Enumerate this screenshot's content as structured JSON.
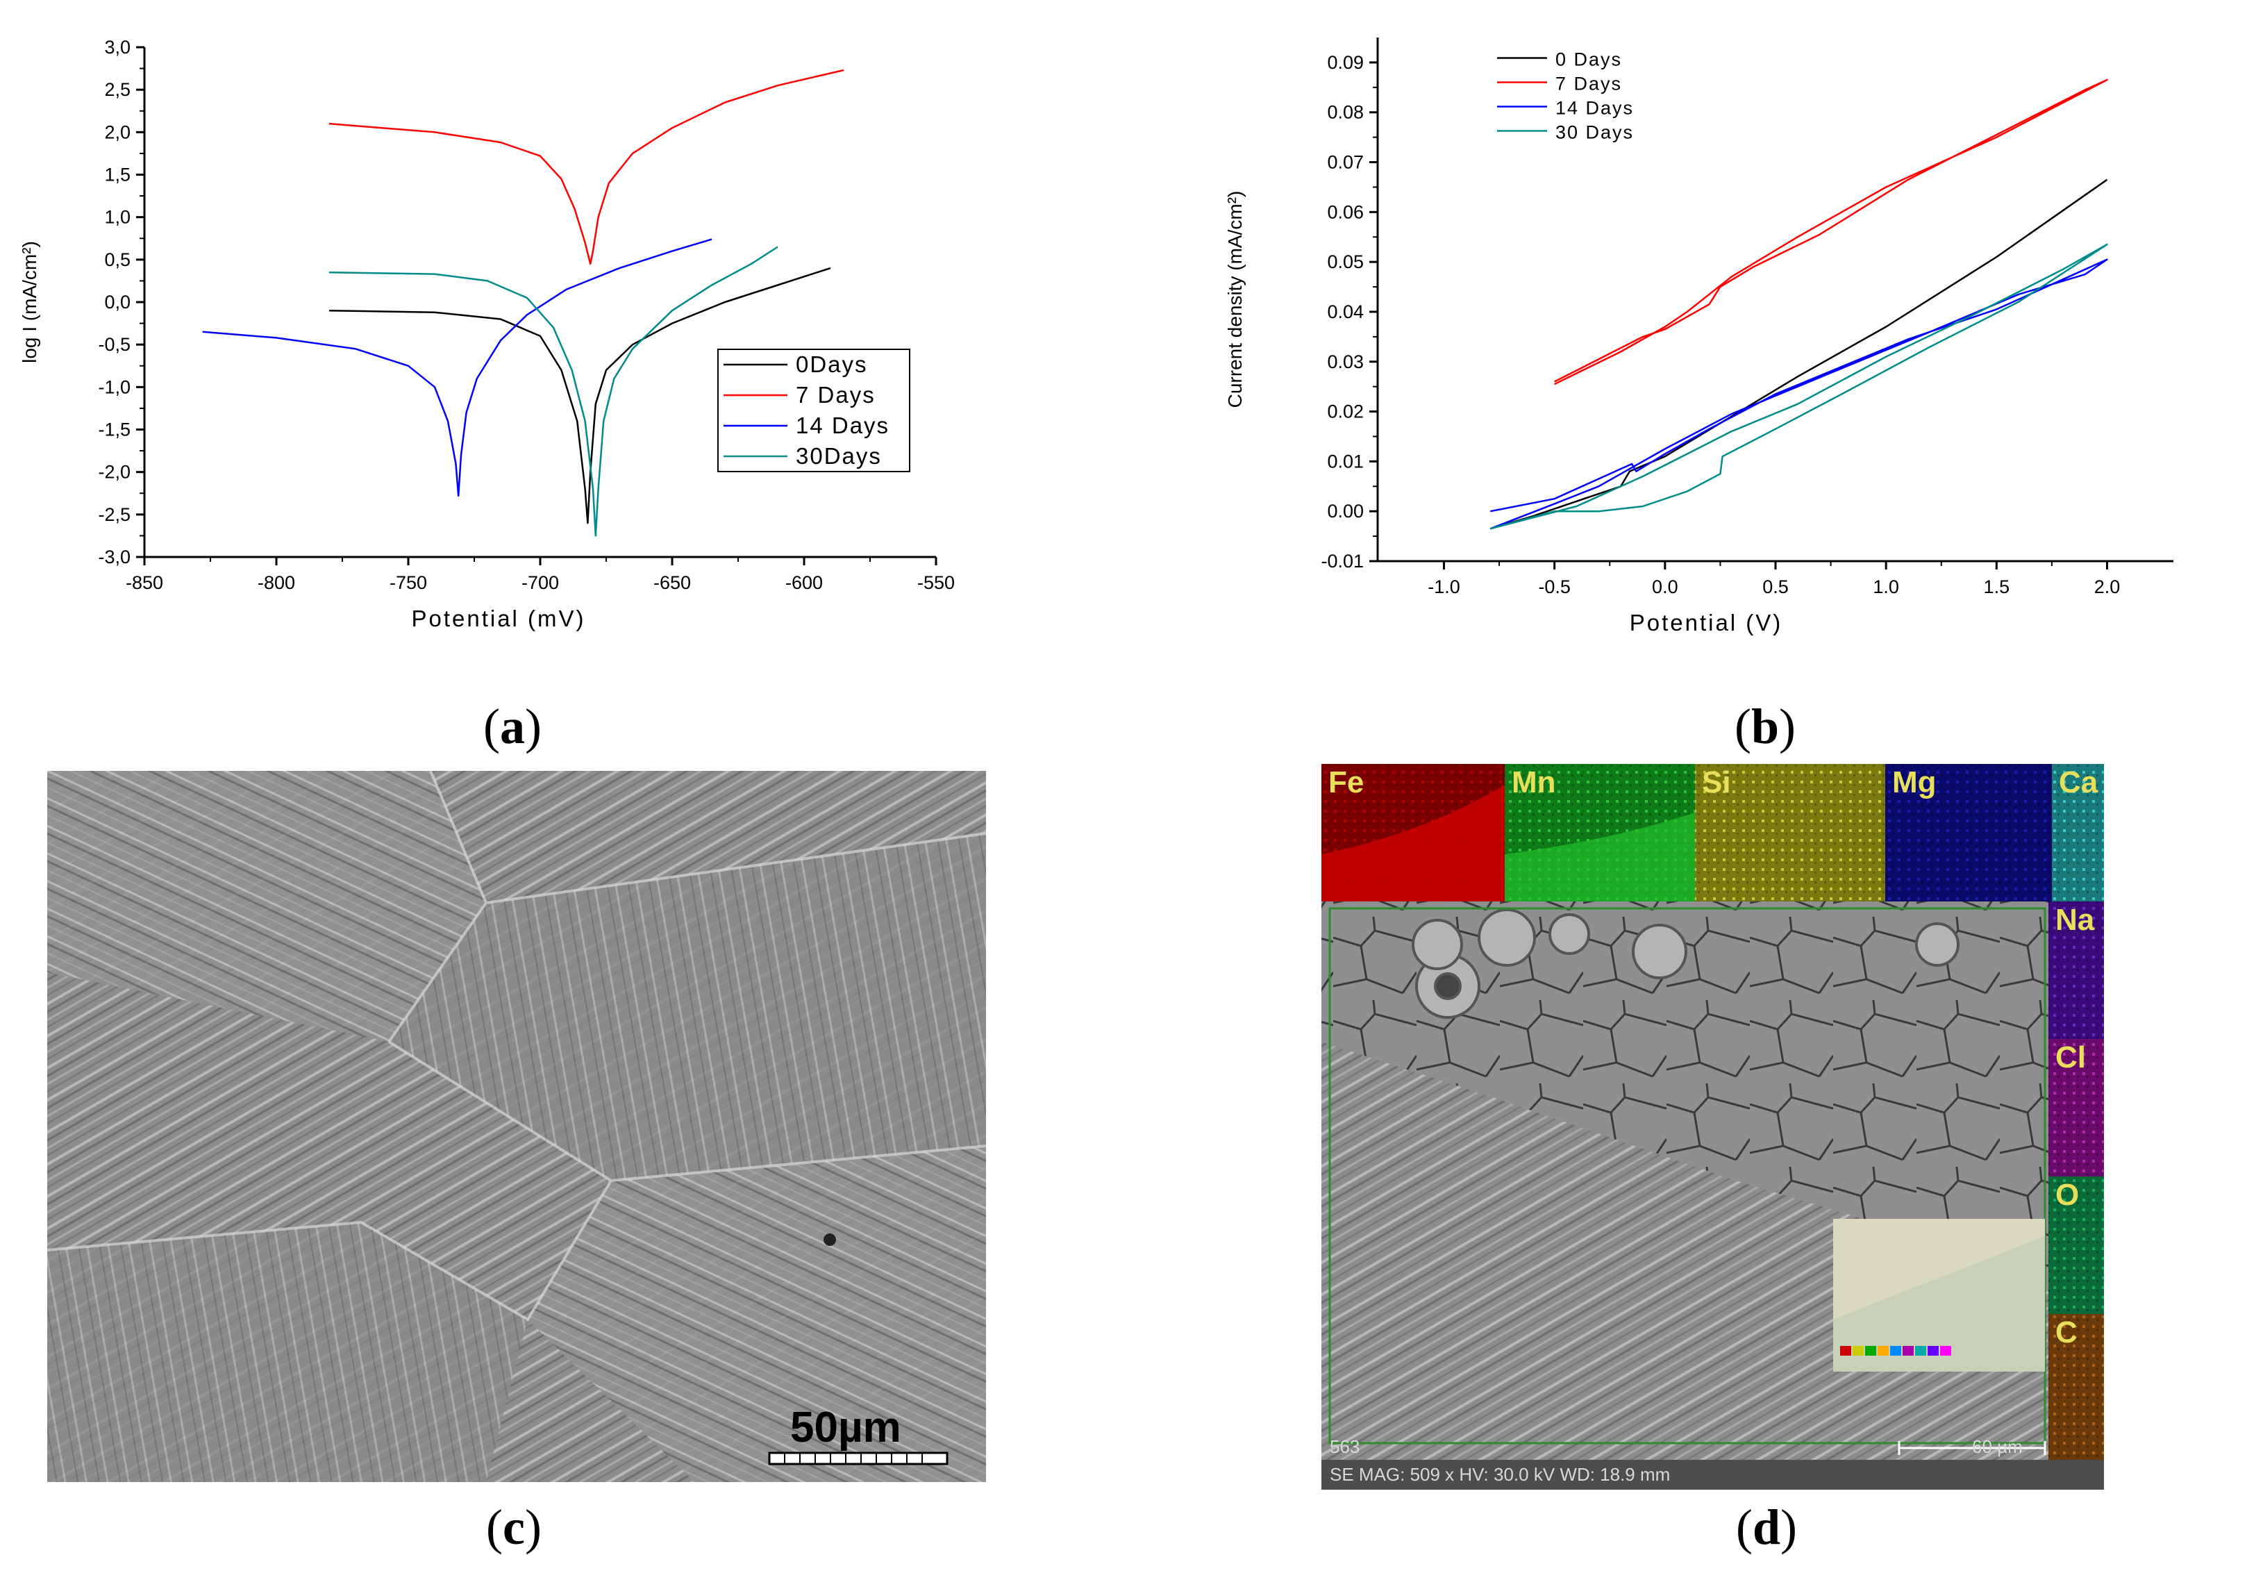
{
  "panels": {
    "a": {
      "caption": "a"
    },
    "b": {
      "caption": "b"
    },
    "c": {
      "caption": "c",
      "scale_bar": "50µm"
    },
    "d": {
      "caption": "d",
      "elements_top": [
        "Fe",
        "Mn",
        "Si",
        "Mg",
        "Ca"
      ],
      "elements_right": [
        "Na",
        "Cl",
        "O",
        "C"
      ],
      "sample_id": "563",
      "scale_bar": "60 µm",
      "info": "SE  MAG: 509 x  HV: 30.0 kV  WD: 18.9 mm"
    }
  },
  "colors": {
    "0": "#000000",
    "7": "#ff0000",
    "14": "#0000ff",
    "30": "#008b8b"
  },
  "chart_data": [
    {
      "id": "a",
      "type": "line",
      "xlabel": "Potential (mV)",
      "ylabel": "log I (mA/cm²)",
      "xlim": [
        -850,
        -550
      ],
      "ylim": [
        -3.0,
        3.0
      ],
      "xticks": [
        "-850",
        "-800",
        "-750",
        "-700",
        "-650",
        "-600",
        "-550"
      ],
      "yticks": [
        "-3,0",
        "-2,5",
        "-2,0",
        "-1,5",
        "-1,0",
        "-0,5",
        "0,0",
        "0,5",
        "1,0",
        "1,5",
        "2,0",
        "2,5",
        "3,0"
      ],
      "series": [
        {
          "name": "0Days",
          "color": "#000000",
          "points": [
            [
              -780,
              -0.1
            ],
            [
              -740,
              -0.12
            ],
            [
              -715,
              -0.2
            ],
            [
              -700,
              -0.4
            ],
            [
              -692,
              -0.8
            ],
            [
              -686,
              -1.4
            ],
            [
              -683,
              -2.2
            ],
            [
              -682,
              -2.6
            ],
            [
              -681,
              -2.0
            ],
            [
              -679,
              -1.2
            ],
            [
              -675,
              -0.8
            ],
            [
              -665,
              -0.5
            ],
            [
              -650,
              -0.25
            ],
            [
              -630,
              0.0
            ],
            [
              -610,
              0.2
            ],
            [
              -590,
              0.4
            ]
          ]
        },
        {
          "name": "7 Days",
          "color": "#ff0000",
          "points": [
            [
              -780,
              2.1
            ],
            [
              -740,
              2.0
            ],
            [
              -715,
              1.88
            ],
            [
              -700,
              1.72
            ],
            [
              -692,
              1.45
            ],
            [
              -687,
              1.1
            ],
            [
              -683,
              0.7
            ],
            [
              -681,
              0.45
            ],
            [
              -680,
              0.6
            ],
            [
              -678,
              1.0
            ],
            [
              -674,
              1.4
            ],
            [
              -665,
              1.75
            ],
            [
              -650,
              2.05
            ],
            [
              -630,
              2.35
            ],
            [
              -610,
              2.55
            ],
            [
              -585,
              2.73
            ]
          ]
        },
        {
          "name": "14 Days",
          "color": "#0000ff",
          "points": [
            [
              -828,
              -0.35
            ],
            [
              -800,
              -0.42
            ],
            [
              -770,
              -0.55
            ],
            [
              -750,
              -0.75
            ],
            [
              -740,
              -1.0
            ],
            [
              -735,
              -1.4
            ],
            [
              -732,
              -1.9
            ],
            [
              -731,
              -2.28
            ],
            [
              -730,
              -1.8
            ],
            [
              -728,
              -1.3
            ],
            [
              -724,
              -0.9
            ],
            [
              -715,
              -0.45
            ],
            [
              -705,
              -0.15
            ],
            [
              -690,
              0.15
            ],
            [
              -670,
              0.4
            ],
            [
              -650,
              0.6
            ],
            [
              -635,
              0.74
            ]
          ]
        },
        {
          "name": "30Days",
          "color": "#008b8b",
          "points": [
            [
              -780,
              0.35
            ],
            [
              -740,
              0.33
            ],
            [
              -720,
              0.25
            ],
            [
              -705,
              0.05
            ],
            [
              -695,
              -0.3
            ],
            [
              -688,
              -0.8
            ],
            [
              -683,
              -1.4
            ],
            [
              -680,
              -2.2
            ],
            [
              -679,
              -2.75
            ],
            [
              -678,
              -2.2
            ],
            [
              -676,
              -1.4
            ],
            [
              -672,
              -0.9
            ],
            [
              -665,
              -0.55
            ],
            [
              -650,
              -0.1
            ],
            [
              -635,
              0.2
            ],
            [
              -620,
              0.45
            ],
            [
              -610,
              0.65
            ]
          ]
        }
      ],
      "legend": "right"
    },
    {
      "id": "b",
      "type": "line",
      "xlabel": "Potential (V)",
      "ylabel": "Current density (mA/cm²)",
      "xlim": [
        -1.3,
        2.3
      ],
      "ylim": [
        -0.01,
        0.095
      ],
      "xticks": [
        "-1.0",
        "-0.5",
        "0.0",
        "0.5",
        "1.0",
        "1.5",
        "2.0"
      ],
      "yticks": [
        "-0.01",
        "0.00",
        "0.01",
        "0.02",
        "0.03",
        "0.04",
        "0.05",
        "0.06",
        "0.07",
        "0.08",
        "0.09"
      ],
      "series": [
        {
          "name": "0 Days",
          "color": "#000000",
          "points": [
            [
              -0.79,
              -0.0035
            ],
            [
              -0.6,
              -0.001
            ],
            [
              -0.4,
              0.002
            ],
            [
              -0.2,
              0.005
            ],
            [
              -0.16,
              0.008
            ],
            [
              0.0,
              0.011
            ],
            [
              0.3,
              0.019
            ],
            [
              0.6,
              0.027
            ],
            [
              1.0,
              0.037
            ],
            [
              1.5,
              0.051
            ],
            [
              2.0,
              0.0665
            ]
          ]
        },
        {
          "name": "7 Days",
          "color": "#ff0000",
          "points": [
            [
              -0.5,
              0.0255
            ],
            [
              -0.2,
              0.032
            ],
            [
              0.0,
              0.037
            ],
            [
              0.1,
              0.04
            ],
            [
              0.3,
              0.047
            ],
            [
              0.6,
              0.055
            ],
            [
              1.0,
              0.065
            ],
            [
              1.5,
              0.075
            ],
            [
              2.0,
              0.0865
            ],
            [
              1.9,
              0.0845
            ],
            [
              1.5,
              0.0755
            ],
            [
              1.1,
              0.0665
            ],
            [
              0.7,
              0.0555
            ],
            [
              0.4,
              0.049
            ],
            [
              0.25,
              0.045
            ],
            [
              0.2,
              0.0415
            ],
            [
              0.0,
              0.0365
            ],
            [
              -0.1,
              0.035
            ],
            [
              -0.3,
              0.0305
            ],
            [
              -0.5,
              0.026
            ]
          ]
        },
        {
          "name": "14 Days",
          "color": "#0000ff",
          "points": [
            [
              -0.79,
              0.0
            ],
            [
              -0.5,
              0.0025
            ],
            [
              -0.3,
              0.0065
            ],
            [
              -0.15,
              0.0095
            ],
            [
              -0.13,
              0.008
            ],
            [
              0.0,
              0.0115
            ],
            [
              0.2,
              0.0165
            ],
            [
              0.5,
              0.0235
            ],
            [
              0.8,
              0.029
            ],
            [
              1.1,
              0.0345
            ],
            [
              1.5,
              0.0405
            ],
            [
              1.8,
              0.0465
            ],
            [
              2.0,
              0.0505
            ],
            [
              1.9,
              0.0475
            ],
            [
              1.6,
              0.0435
            ],
            [
              1.2,
              0.036
            ],
            [
              0.9,
              0.0305
            ],
            [
              0.6,
              0.025
            ],
            [
              0.3,
              0.0195
            ],
            [
              0.0,
              0.0125
            ],
            [
              -0.3,
              0.005
            ],
            [
              -0.5,
              0.0015
            ],
            [
              -0.79,
              -0.0035
            ]
          ]
        },
        {
          "name": "30 Days",
          "color": "#008b8b",
          "points": [
            [
              -0.79,
              -0.0035
            ],
            [
              -0.5,
              0.0
            ],
            [
              -0.3,
              0.0
            ],
            [
              -0.1,
              0.001
            ],
            [
              0.1,
              0.004
            ],
            [
              0.25,
              0.0075
            ],
            [
              0.26,
              0.011
            ],
            [
              0.5,
              0.0165
            ],
            [
              0.8,
              0.0235
            ],
            [
              1.2,
              0.033
            ],
            [
              1.6,
              0.042
            ],
            [
              2.0,
              0.0535
            ],
            [
              1.8,
              0.0485
            ],
            [
              1.4,
              0.0395
            ],
            [
              1.0,
              0.031
            ],
            [
              0.6,
              0.0215
            ],
            [
              0.3,
              0.016
            ],
            [
              0.1,
              0.0115
            ],
            [
              -0.1,
              0.007
            ],
            [
              -0.4,
              0.001
            ],
            [
              -0.79,
              -0.0035
            ]
          ]
        }
      ],
      "legend": "top-left"
    }
  ]
}
